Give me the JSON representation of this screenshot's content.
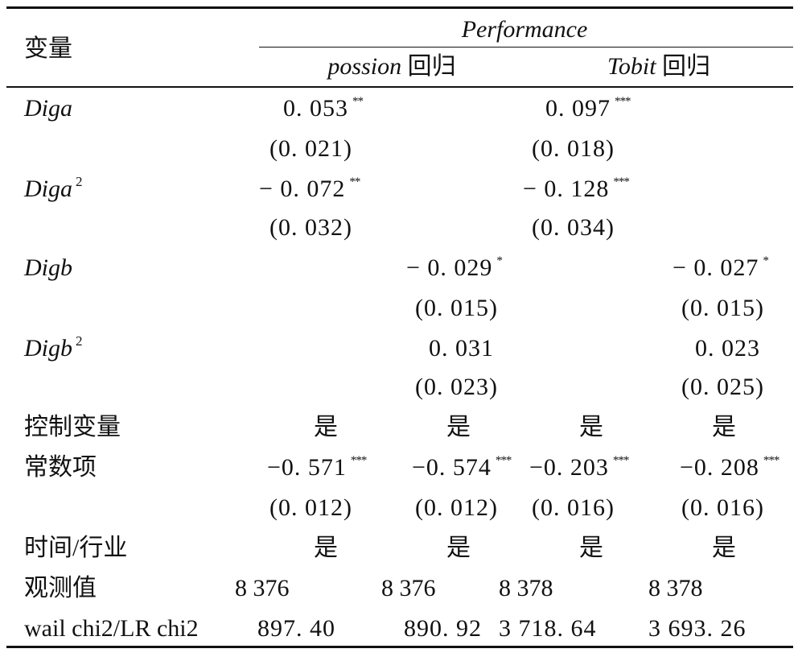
{
  "header": {
    "var_label": "变量",
    "group_label": "Performance",
    "sub1_model": "possion",
    "sub2_model": "Tobit",
    "sub_suffix": "回归"
  },
  "rows": {
    "diga": {
      "label": "Diga",
      "c1": "0. 053",
      "c1_stars": "**",
      "c3": "0. 097",
      "c3_stars": "***"
    },
    "diga_se": {
      "c1": "(0. 021)",
      "c3": "(0. 018)"
    },
    "diga2": {
      "label": "Diga",
      "sup": "2",
      "c1": "− 0. 072",
      "c1_stars": "**",
      "c3": "− 0. 128",
      "c3_stars": "***"
    },
    "diga2_se": {
      "c1": "(0. 032)",
      "c3": "(0. 034)"
    },
    "digb": {
      "label": "Digb",
      "c2": "− 0. 029",
      "c2_stars": "*",
      "c4": "− 0. 027",
      "c4_stars": "*"
    },
    "digb_se": {
      "c2": "(0. 015)",
      "c4": "(0. 015)"
    },
    "digb2": {
      "label": "Digb",
      "sup": "2",
      "c2": "0. 031",
      "c4": "0. 023"
    },
    "digb2_se": {
      "c2": "(0. 023)",
      "c4": "(0. 025)"
    },
    "controls": {
      "label": "控制变量",
      "c1": "是",
      "c2": "是",
      "c3": "是",
      "c4": "是"
    },
    "const": {
      "label": "常数项",
      "c1": "−0. 571",
      "c1_stars": "***",
      "c2": "−0. 574",
      "c2_stars": "***",
      "c3": "−0. 203",
      "c3_stars": "***",
      "c4": "−0. 208",
      "c4_stars": "***"
    },
    "const_se": {
      "c1": "(0. 012)",
      "c2": "(0. 012)",
      "c3": "(0. 016)",
      "c4": "(0. 016)"
    },
    "time_ind": {
      "label": "时间/行业",
      "c1": "是",
      "c2": "是",
      "c3": "是",
      "c4": "是"
    },
    "obs": {
      "label": "观测值",
      "c1": "8 376",
      "c2": "8 376",
      "c3": "8 378",
      "c4": "8 378"
    },
    "chi2": {
      "label": "wail chi2/LR chi2",
      "c1": "897. 40",
      "c2": "890. 92",
      "c3": "3 718. 64",
      "c4": "3 693. 26"
    }
  }
}
